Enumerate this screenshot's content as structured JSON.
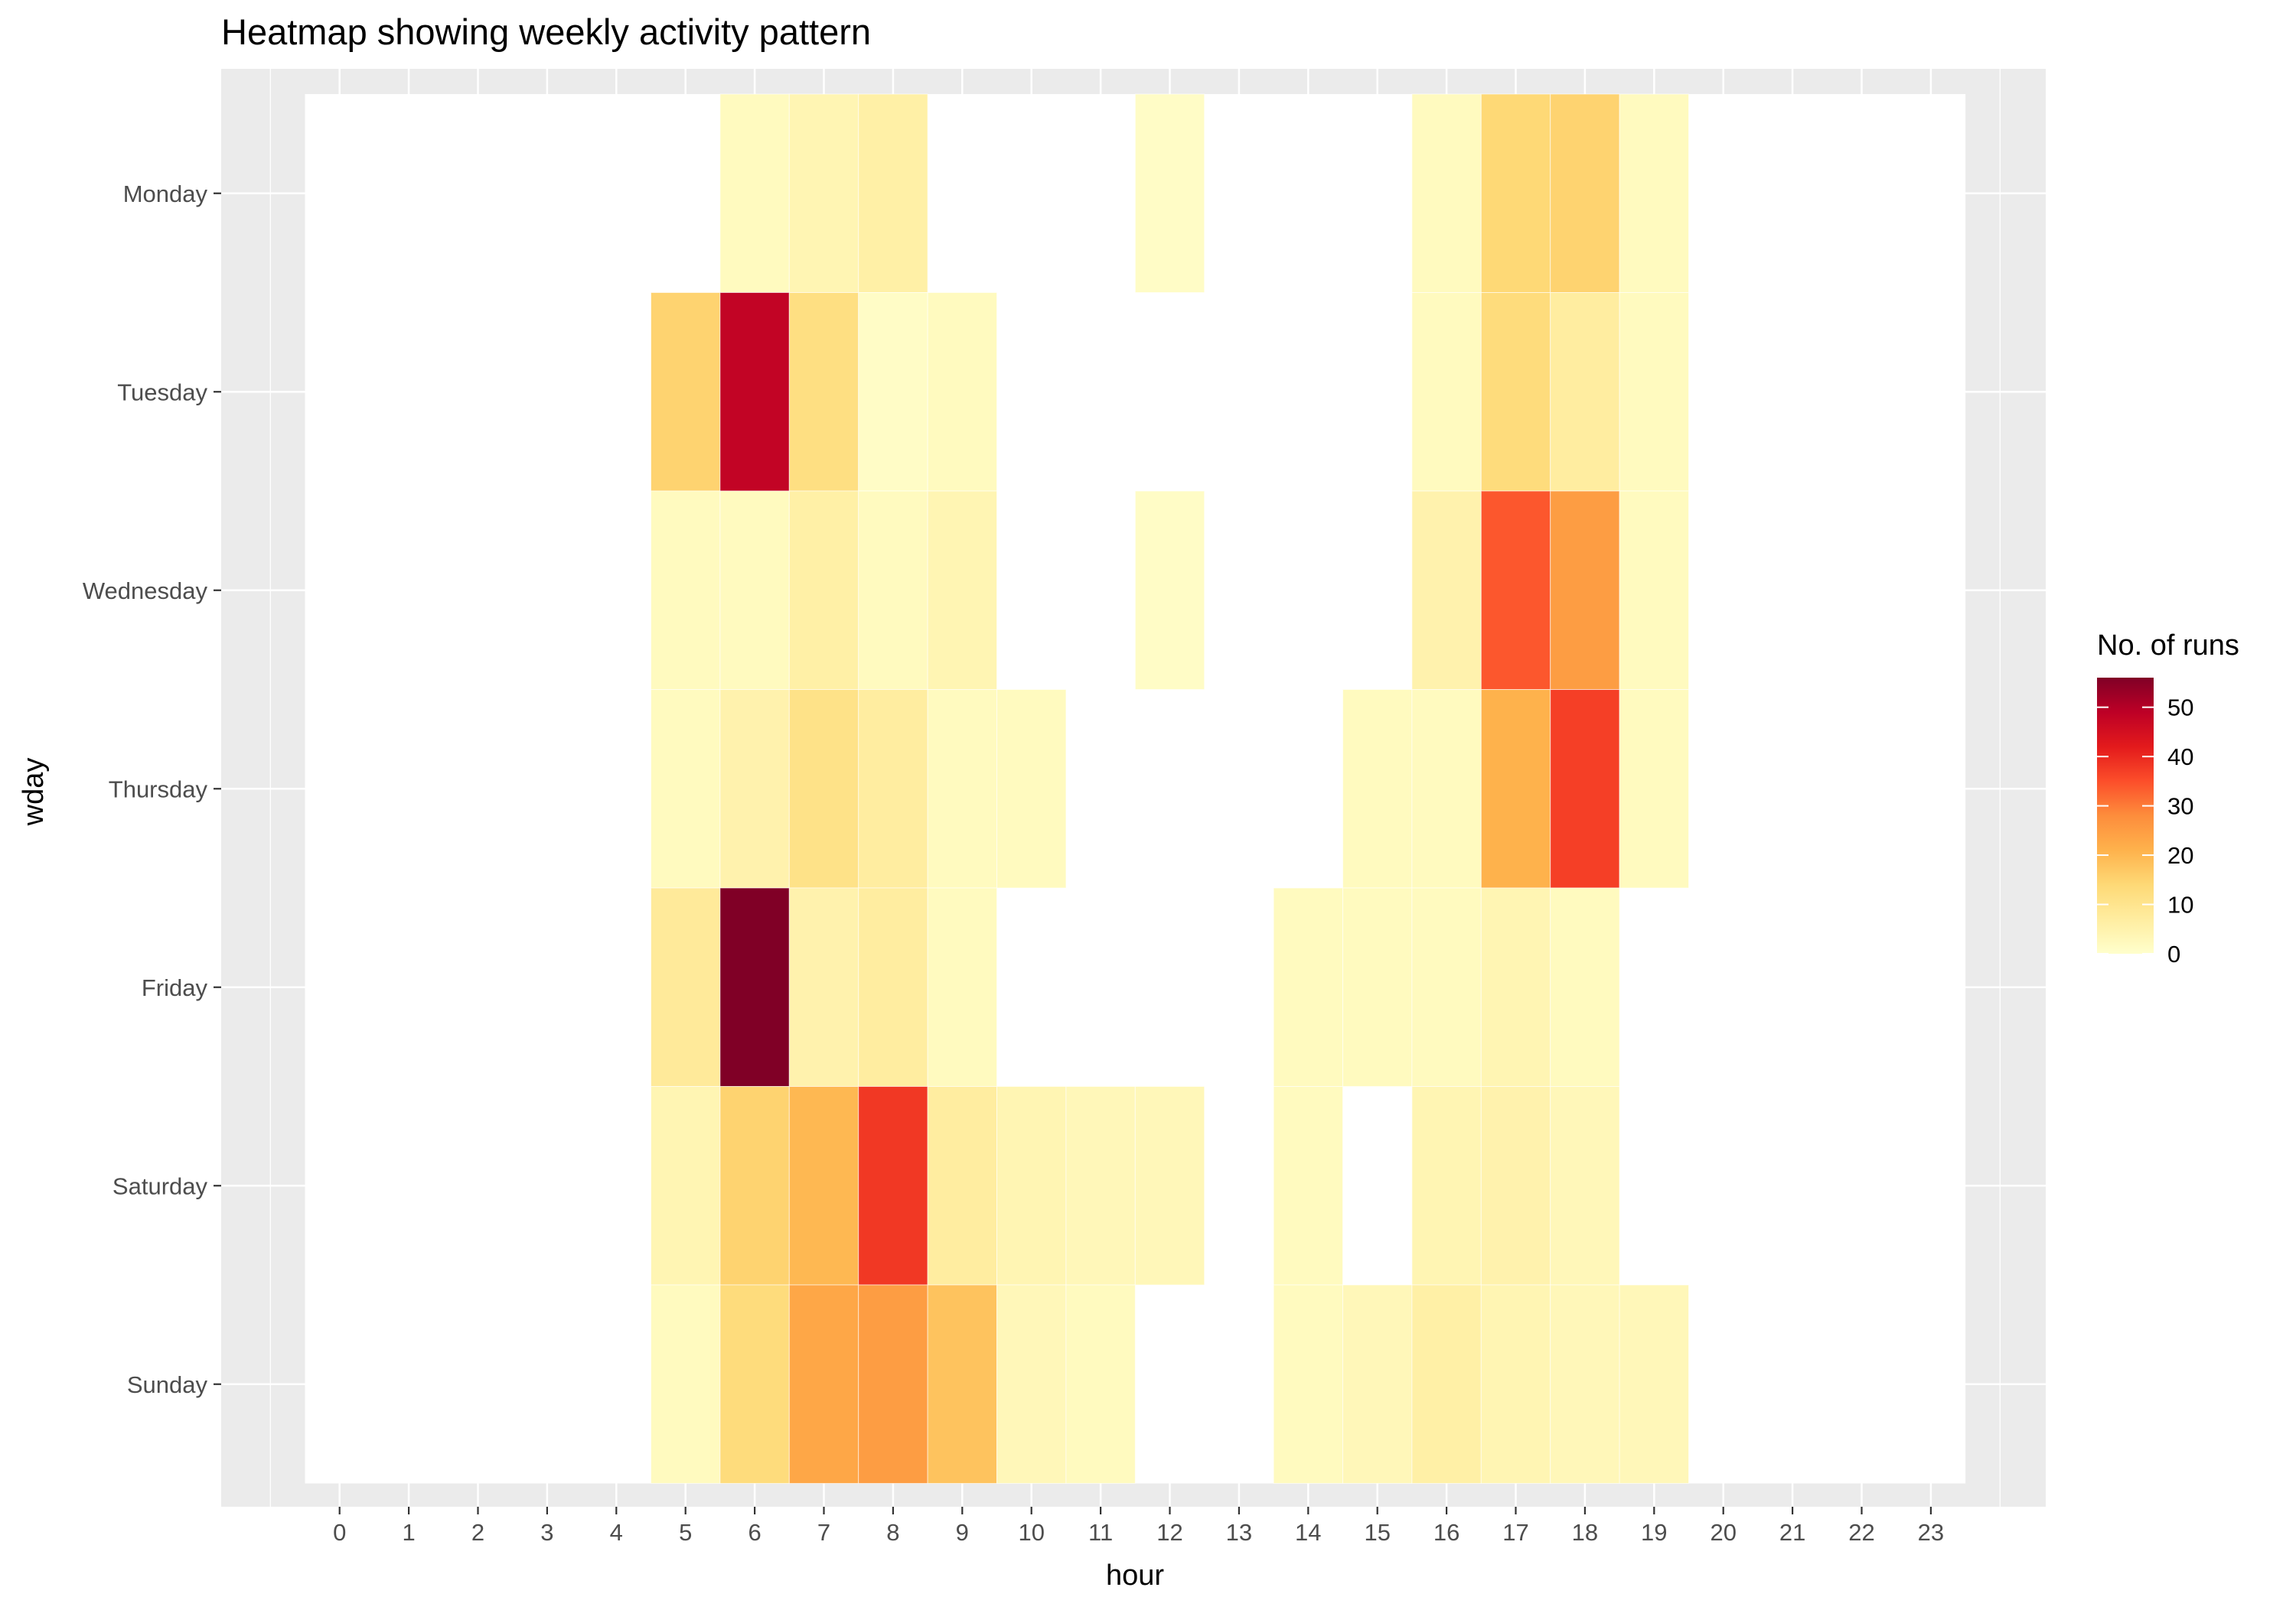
{
  "chart_data": {
    "type": "heatmap",
    "title": "Heatmap showing weekly activity pattern",
    "xlabel": "hour",
    "ylabel": "wday",
    "x_categories": [
      "0",
      "1",
      "2",
      "3",
      "4",
      "5",
      "6",
      "7",
      "8",
      "9",
      "10",
      "11",
      "12",
      "13",
      "14",
      "15",
      "16",
      "17",
      "18",
      "19",
      "20",
      "21",
      "22",
      "23"
    ],
    "y_categories": [
      "Monday",
      "Tuesday",
      "Wednesday",
      "Thursday",
      "Friday",
      "Saturday",
      "Sunday"
    ],
    "legend": {
      "title": "No. of runs",
      "ticks": [
        0,
        10,
        20,
        30,
        40,
        50
      ],
      "range": [
        0,
        56
      ],
      "placement": "right"
    },
    "grid": true,
    "colors": {
      "panel_bg": "#ebebeb",
      "grid_line": "#ffffff",
      "scale": [
        "#ffffcc",
        "#ffeda0",
        "#fed976",
        "#feb24c",
        "#fd8d3c",
        "#fc4e2a",
        "#e31a1c",
        "#bd0026",
        "#800026"
      ]
    },
    "cells": [
      {
        "day": "Monday",
        "hour": 6,
        "value": 2
      },
      {
        "day": "Monday",
        "hour": 7,
        "value": 4
      },
      {
        "day": "Monday",
        "hour": 8,
        "value": 6
      },
      {
        "day": "Monday",
        "hour": 12,
        "value": 1
      },
      {
        "day": "Monday",
        "hour": 16,
        "value": 2
      },
      {
        "day": "Monday",
        "hour": 17,
        "value": 14
      },
      {
        "day": "Monday",
        "hour": 18,
        "value": 15
      },
      {
        "day": "Monday",
        "hour": 19,
        "value": 2
      },
      {
        "day": "Tuesday",
        "hour": 5,
        "value": 15
      },
      {
        "day": "Tuesday",
        "hour": 6,
        "value": 48
      },
      {
        "day": "Tuesday",
        "hour": 7,
        "value": 12
      },
      {
        "day": "Tuesday",
        "hour": 8,
        "value": 1
      },
      {
        "day": "Tuesday",
        "hour": 9,
        "value": 2
      },
      {
        "day": "Tuesday",
        "hour": 16,
        "value": 2
      },
      {
        "day": "Tuesday",
        "hour": 17,
        "value": 13
      },
      {
        "day": "Tuesday",
        "hour": 18,
        "value": 7
      },
      {
        "day": "Tuesday",
        "hour": 19,
        "value": 2
      },
      {
        "day": "Wednesday",
        "hour": 5,
        "value": 2
      },
      {
        "day": "Wednesday",
        "hour": 6,
        "value": 2
      },
      {
        "day": "Wednesday",
        "hour": 7,
        "value": 6
      },
      {
        "day": "Wednesday",
        "hour": 8,
        "value": 2
      },
      {
        "day": "Wednesday",
        "hour": 9,
        "value": 4
      },
      {
        "day": "Wednesday",
        "hour": 12,
        "value": 1
      },
      {
        "day": "Wednesday",
        "hour": 16,
        "value": 5
      },
      {
        "day": "Wednesday",
        "hour": 17,
        "value": 34
      },
      {
        "day": "Wednesday",
        "hour": 18,
        "value": 25
      },
      {
        "day": "Wednesday",
        "hour": 19,
        "value": 2
      },
      {
        "day": "Thursday",
        "hour": 5,
        "value": 2
      },
      {
        "day": "Thursday",
        "hour": 6,
        "value": 5
      },
      {
        "day": "Thursday",
        "hour": 7,
        "value": 11
      },
      {
        "day": "Thursday",
        "hour": 8,
        "value": 7
      },
      {
        "day": "Thursday",
        "hour": 9,
        "value": 2
      },
      {
        "day": "Thursday",
        "hour": 10,
        "value": 2
      },
      {
        "day": "Thursday",
        "hour": 15,
        "value": 2
      },
      {
        "day": "Thursday",
        "hour": 16,
        "value": 2
      },
      {
        "day": "Thursday",
        "hour": 17,
        "value": 21
      },
      {
        "day": "Thursday",
        "hour": 18,
        "value": 37
      },
      {
        "day": "Thursday",
        "hour": 19,
        "value": 2
      },
      {
        "day": "Friday",
        "hour": 5,
        "value": 8
      },
      {
        "day": "Friday",
        "hour": 6,
        "value": 56
      },
      {
        "day": "Friday",
        "hour": 7,
        "value": 5
      },
      {
        "day": "Friday",
        "hour": 8,
        "value": 7
      },
      {
        "day": "Friday",
        "hour": 9,
        "value": 2
      },
      {
        "day": "Friday",
        "hour": 14,
        "value": 2
      },
      {
        "day": "Friday",
        "hour": 15,
        "value": 2
      },
      {
        "day": "Friday",
        "hour": 16,
        "value": 2
      },
      {
        "day": "Friday",
        "hour": 17,
        "value": 4
      },
      {
        "day": "Friday",
        "hour": 18,
        "value": 2
      },
      {
        "day": "Saturday",
        "hour": 5,
        "value": 4
      },
      {
        "day": "Saturday",
        "hour": 6,
        "value": 15
      },
      {
        "day": "Saturday",
        "hour": 7,
        "value": 20
      },
      {
        "day": "Saturday",
        "hour": 8,
        "value": 38
      },
      {
        "day": "Saturday",
        "hour": 9,
        "value": 7
      },
      {
        "day": "Saturday",
        "hour": 10,
        "value": 4
      },
      {
        "day": "Saturday",
        "hour": 11,
        "value": 3
      },
      {
        "day": "Saturday",
        "hour": 12,
        "value": 3
      },
      {
        "day": "Saturday",
        "hour": 14,
        "value": 2
      },
      {
        "day": "Saturday",
        "hour": 16,
        "value": 4
      },
      {
        "day": "Saturday",
        "hour": 17,
        "value": 5
      },
      {
        "day": "Saturday",
        "hour": 18,
        "value": 3
      },
      {
        "day": "Sunday",
        "hour": 5,
        "value": 2
      },
      {
        "day": "Sunday",
        "hour": 6,
        "value": 13
      },
      {
        "day": "Sunday",
        "hour": 7,
        "value": 23
      },
      {
        "day": "Sunday",
        "hour": 8,
        "value": 25
      },
      {
        "day": "Sunday",
        "hour": 9,
        "value": 18
      },
      {
        "day": "Sunday",
        "hour": 10,
        "value": 3
      },
      {
        "day": "Sunday",
        "hour": 11,
        "value": 2
      },
      {
        "day": "Sunday",
        "hour": 14,
        "value": 2
      },
      {
        "day": "Sunday",
        "hour": 15,
        "value": 3
      },
      {
        "day": "Sunday",
        "hour": 16,
        "value": 6
      },
      {
        "day": "Sunday",
        "hour": 17,
        "value": 4
      },
      {
        "day": "Sunday",
        "hour": 18,
        "value": 3
      },
      {
        "day": "Sunday",
        "hour": 19,
        "value": 3
      }
    ]
  }
}
